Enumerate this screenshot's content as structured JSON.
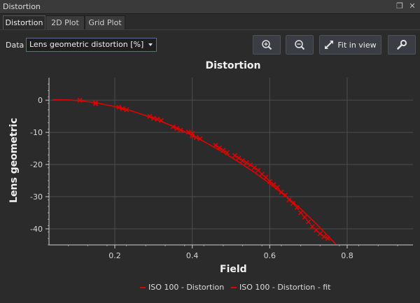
{
  "window": {
    "title": "Distortion"
  },
  "tabs": [
    "Distortion",
    "2D Plot",
    "Grid Plot"
  ],
  "toolbar": {
    "data_label": "Data",
    "data_select_value": "Lens geometric distortion [%]",
    "fit_label": "Fit in view"
  },
  "colors": {
    "series": "#e00000",
    "background": "#2b2b2b"
  },
  "chart_data": {
    "type": "scatter",
    "title": "Distortion",
    "xlabel": "Field",
    "ylabel": "Lens geometric",
    "xlim": [
      0.03,
      0.97
    ],
    "ylim": [
      -45,
      7
    ],
    "xticks": [
      0.2,
      0.4,
      0.6,
      0.8
    ],
    "yticks": [
      0,
      -10,
      -20,
      -30,
      -40
    ],
    "grid": true,
    "legend_position": "bottom",
    "series": [
      {
        "name": "ISO 100 - Distortion",
        "marker": "cross",
        "points": [
          [
            0.11,
            0.0
          ],
          [
            0.15,
            -0.8
          ],
          [
            0.15,
            -1.1
          ],
          [
            0.21,
            -2.2
          ],
          [
            0.22,
            -2.6
          ],
          [
            0.23,
            -3.0
          ],
          [
            0.29,
            -5.0
          ],
          [
            0.3,
            -5.6
          ],
          [
            0.31,
            -5.9
          ],
          [
            0.32,
            -6.3
          ],
          [
            0.35,
            -8.3
          ],
          [
            0.36,
            -8.8
          ],
          [
            0.37,
            -9.3
          ],
          [
            0.39,
            -9.9
          ],
          [
            0.4,
            -10.3
          ],
          [
            0.4,
            -11.0
          ],
          [
            0.41,
            -11.6
          ],
          [
            0.42,
            -12.0
          ],
          [
            0.46,
            -14.0
          ],
          [
            0.47,
            -14.8
          ],
          [
            0.48,
            -15.6
          ],
          [
            0.49,
            -16.3
          ],
          [
            0.51,
            -17.2
          ],
          [
            0.52,
            -18.0
          ],
          [
            0.53,
            -18.8
          ],
          [
            0.54,
            -19.4
          ],
          [
            0.55,
            -20.1
          ],
          [
            0.56,
            -21.0
          ],
          [
            0.57,
            -21.8
          ],
          [
            0.58,
            -23.0
          ],
          [
            0.59,
            -24.0
          ],
          [
            0.6,
            -25.3
          ],
          [
            0.61,
            -26.2
          ],
          [
            0.62,
            -27.1
          ],
          [
            0.63,
            -28.6
          ],
          [
            0.64,
            -29.5
          ],
          [
            0.65,
            -31.0
          ],
          [
            0.66,
            -32.1
          ],
          [
            0.67,
            -33.4
          ],
          [
            0.68,
            -35.0
          ],
          [
            0.69,
            -36.4
          ],
          [
            0.7,
            -37.8
          ],
          [
            0.71,
            -39.3
          ],
          [
            0.72,
            -40.4
          ],
          [
            0.73,
            -41.5
          ],
          [
            0.74,
            -42.4
          ],
          [
            0.75,
            -43.0
          ]
        ]
      },
      {
        "name": "ISO 100 - Distortion - fit",
        "type": "line",
        "x": [
          0.04,
          0.08,
          0.12,
          0.16,
          0.2,
          0.24,
          0.28,
          0.32,
          0.36,
          0.4,
          0.44,
          0.48,
          0.52,
          0.56,
          0.6,
          0.64,
          0.68,
          0.72,
          0.77
        ],
        "y": [
          0.2,
          0.1,
          -0.3,
          -1.0,
          -2.0,
          -3.2,
          -4.8,
          -6.6,
          -8.6,
          -10.9,
          -13.5,
          -16.2,
          -19.2,
          -22.4,
          -25.9,
          -29.7,
          -33.8,
          -38.4,
          -44.7
        ]
      }
    ]
  }
}
